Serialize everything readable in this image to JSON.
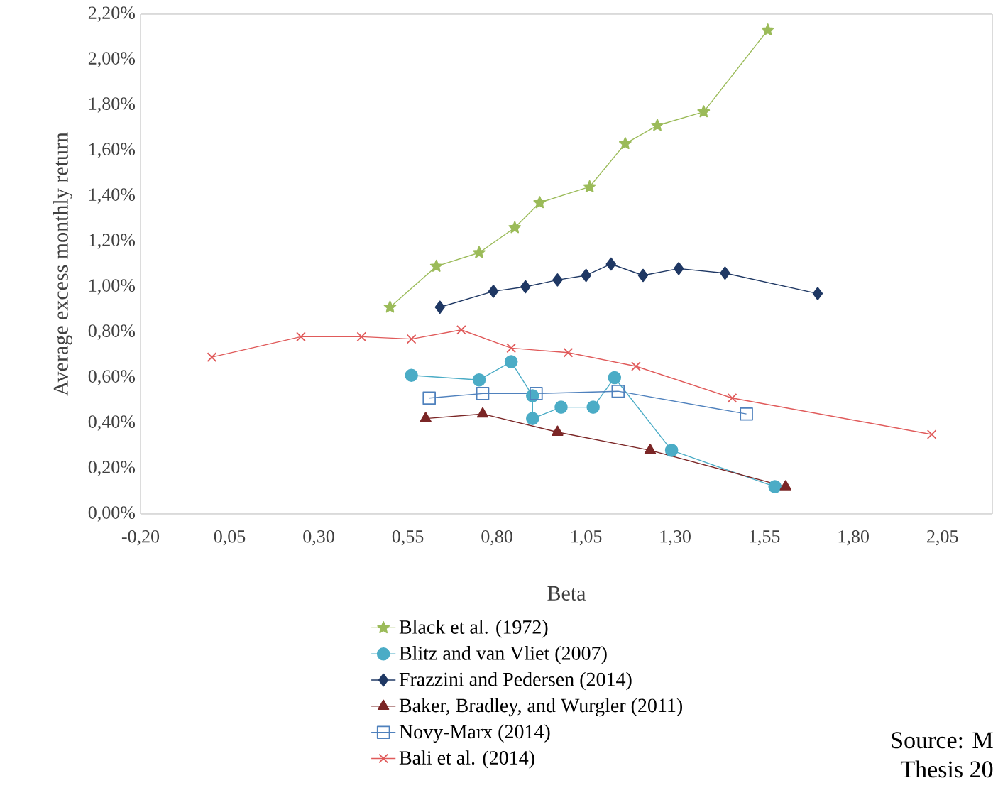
{
  "chart_data": {
    "type": "line",
    "xlabel": "Beta",
    "ylabel": "Average excess monthly return",
    "xlim": [
      -0.2,
      2.19
    ],
    "xticks": [
      {
        "value": -0.2,
        "label": "-0,20"
      },
      {
        "value": 0.05,
        "label": "0,05"
      },
      {
        "value": 0.3,
        "label": "0,30"
      },
      {
        "value": 0.55,
        "label": "0,55"
      },
      {
        "value": 0.8,
        "label": "0,80"
      },
      {
        "value": 1.05,
        "label": "1,05"
      },
      {
        "value": 1.3,
        "label": "1,30"
      },
      {
        "value": 1.55,
        "label": "1,55"
      },
      {
        "value": 1.8,
        "label": "1,80"
      },
      {
        "value": 2.05,
        "label": "2,05"
      }
    ],
    "ylim": [
      0,
      2.2
    ],
    "yticks": [
      {
        "value": 0,
        "label": "0,00%"
      },
      {
        "value": 0.2,
        "label": "0,20%"
      },
      {
        "value": 0.4,
        "label": "0,40%"
      },
      {
        "value": 0.6,
        "label": "0,60%"
      },
      {
        "value": 0.8,
        "label": "0,80%"
      },
      {
        "value": 1.0,
        "label": "1,00%"
      },
      {
        "value": 1.2,
        "label": "1,20%"
      },
      {
        "value": 1.4,
        "label": "1,40%"
      },
      {
        "value": 1.6,
        "label": "1,60%"
      },
      {
        "value": 1.8,
        "label": "1,80%"
      },
      {
        "value": 2.0,
        "label": "2,00%"
      },
      {
        "value": 2.2,
        "label": "2,20%"
      }
    ],
    "legend": "bottom",
    "series": [
      {
        "name": "Black et al. (1972)",
        "color": "#9bbb59",
        "marker": "star",
        "x": [
          0.5,
          0.63,
          0.75,
          0.85,
          0.92,
          1.06,
          1.16,
          1.25,
          1.38,
          1.56
        ],
        "values": [
          0.91,
          1.09,
          1.15,
          1.26,
          1.37,
          1.44,
          1.63,
          1.71,
          1.77,
          2.13
        ]
      },
      {
        "name": "Blitz and van Vliet (2007)",
        "color": "#4bacc6",
        "marker": "circle",
        "x": [
          0.56,
          0.75,
          0.84,
          0.9,
          0.9,
          0.98,
          1.07,
          1.13,
          1.29,
          1.58
        ],
        "values": [
          0.61,
          0.59,
          0.67,
          0.52,
          0.42,
          0.47,
          0.47,
          0.6,
          0.28,
          0.12
        ]
      },
      {
        "name": "Frazzini and Pedersen (2014)",
        "color": "#1f3864",
        "marker": "diamond",
        "x": [
          0.64,
          0.79,
          0.88,
          0.97,
          1.05,
          1.12,
          1.21,
          1.31,
          1.44,
          1.7
        ],
        "values": [
          0.91,
          0.98,
          1.0,
          1.03,
          1.05,
          1.1,
          1.05,
          1.08,
          1.06,
          0.97
        ]
      },
      {
        "name": "Baker, Bradley, and Wurgler (2011)",
        "color": "#7b2626",
        "marker": "triangle",
        "x": [
          0.6,
          0.76,
          0.97,
          1.23,
          1.61
        ],
        "values": [
          0.42,
          0.44,
          0.36,
          0.28,
          0.12
        ]
      },
      {
        "name": "Novy-Marx (2014)",
        "color": "#4f81bd",
        "marker": "square",
        "x": [
          0.61,
          0.76,
          0.91,
          1.14,
          1.5
        ],
        "values": [
          0.51,
          0.53,
          0.53,
          0.54,
          0.44
        ]
      },
      {
        "name": "Bali et al. (2014)",
        "color": "#e05a5a",
        "marker": "cross",
        "x": [
          0.0,
          0.25,
          0.42,
          0.56,
          0.7,
          0.84,
          1.0,
          1.19,
          1.46,
          2.02
        ],
        "values": [
          0.69,
          0.78,
          0.78,
          0.77,
          0.81,
          0.73,
          0.71,
          0.65,
          0.51,
          0.35
        ]
      }
    ],
    "annotations": [
      "Source: M",
      "Thesis 20"
    ]
  }
}
